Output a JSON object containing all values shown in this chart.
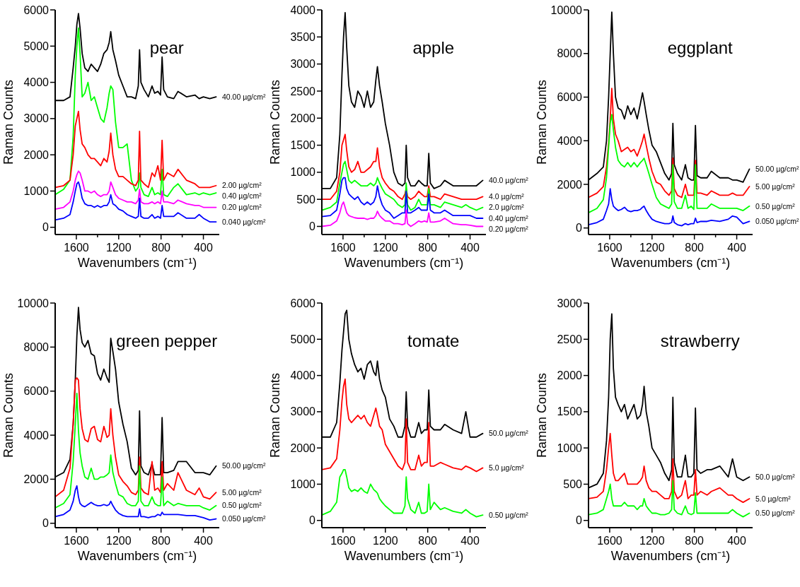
{
  "chart_data": [
    {
      "type": "line",
      "title": "pear",
      "xlabel": "Wavenumbers (cm⁻¹)",
      "ylabel": "Raman Counts",
      "xlim": [
        1800,
        250
      ],
      "xticks": [
        1600,
        {
          "value": 1400,
          "label": null
        },
        1200,
        {
          "value": 1000,
          "label": null
        },
        800,
        {
          "value": 600,
          "label": null
        },
        400
      ],
      "ylim": [
        -200,
        6000
      ],
      "yticks": [
        0,
        1000,
        2000,
        3000,
        4000,
        5000,
        6000
      ],
      "x": [
        1800,
        1720,
        1660,
        1630,
        1610,
        1595,
        1580,
        1565,
        1545,
        1520,
        1490,
        1460,
        1430,
        1400,
        1370,
        1340,
        1310,
        1290,
        1275,
        1255,
        1230,
        1200,
        1160,
        1120,
        1080,
        1040,
        1015,
        1003,
        990,
        960,
        920,
        885,
        860,
        830,
        805,
        790,
        775,
        740,
        680,
        640,
        560,
        480,
        440,
        400,
        340,
        280
      ],
      "series": [
        {
          "name": "40.00 µg/cm²",
          "color": "#000000",
          "values": [
            3500,
            3500,
            3600,
            4400,
            5000,
            5600,
            5900,
            5500,
            4800,
            4400,
            4300,
            4500,
            4400,
            4300,
            4500,
            4800,
            4900,
            5100,
            5400,
            4900,
            4600,
            4200,
            3900,
            3600,
            3600,
            3550,
            3900,
            4900,
            4000,
            3800,
            3600,
            3900,
            3700,
            3750,
            3650,
            4700,
            3800,
            3600,
            3550,
            3750,
            3600,
            3650,
            3550,
            3600,
            3550,
            3600
          ]
        },
        {
          "name": "0.40 µg/cm²",
          "color": "#00ff00",
          "values": [
            900,
            1050,
            1300,
            2500,
            4200,
            5000,
            5500,
            4800,
            3600,
            3700,
            4000,
            3500,
            3600,
            3300,
            3000,
            2900,
            3300,
            3700,
            3900,
            3800,
            2900,
            2200,
            2200,
            2300,
            1300,
            1000,
            1100,
            1500,
            1100,
            900,
            850,
            1100,
            900,
            950,
            900,
            1600,
            900,
            850,
            1100,
            1200,
            900,
            950,
            900,
            950,
            900,
            950
          ]
        },
        {
          "name": "2.00 µg/cm²",
          "color": "#ff0000",
          "values": [
            1100,
            1150,
            1300,
            2000,
            2800,
            3000,
            3200,
            2700,
            2300,
            2200,
            2000,
            1900,
            1900,
            1800,
            1700,
            1900,
            1800,
            2100,
            2600,
            2000,
            1600,
            1400,
            1400,
            1300,
            1200,
            1150,
            1300,
            2650,
            1300,
            1200,
            1100,
            1500,
            1400,
            1700,
            1300,
            2400,
            1300,
            1500,
            1400,
            1600,
            1300,
            1200,
            1100,
            1100,
            1100,
            1150
          ]
        },
        {
          "name": "0.20 µg/cm²",
          "color": "#ff00ff",
          "values": [
            500,
            550,
            700,
            1000,
            1300,
            1450,
            1550,
            1500,
            1300,
            1000,
            1000,
            950,
            1000,
            900,
            850,
            900,
            900,
            1000,
            1250,
            1100,
            900,
            800,
            750,
            700,
            700,
            650,
            750,
            1050,
            700,
            650,
            650,
            700,
            650,
            700,
            650,
            1000,
            700,
            700,
            650,
            750,
            650,
            600,
            600,
            550,
            550,
            550
          ]
        },
        {
          "name": "0.040 µg/cm²",
          "color": "#0000ff",
          "values": [
            200,
            250,
            350,
            700,
            1000,
            1200,
            1250,
            1100,
            800,
            650,
            600,
            600,
            550,
            600,
            550,
            600,
            600,
            700,
            900,
            650,
            600,
            500,
            450,
            350,
            300,
            250,
            300,
            800,
            300,
            250,
            250,
            350,
            250,
            300,
            250,
            600,
            300,
            300,
            300,
            400,
            250,
            250,
            350,
            250,
            150,
            150
          ]
        }
      ]
    },
    {
      "type": "line",
      "title": "apple",
      "xlabel": "Wavenumbers (cm⁻¹)",
      "ylabel": "Raman Counts",
      "xlim": [
        1800,
        250
      ],
      "xticks": [
        1600,
        {
          "value": 1400,
          "label": null
        },
        1200,
        {
          "value": 1000,
          "label": null
        },
        800,
        {
          "value": 600,
          "label": null
        },
        400
      ],
      "ylim": [
        -150,
        4000
      ],
      "yticks": [
        0,
        500,
        1000,
        1500,
        2000,
        2500,
        3000,
        3500,
        4000
      ],
      "x": [
        1800,
        1720,
        1660,
        1630,
        1610,
        1595,
        1580,
        1565,
        1545,
        1520,
        1490,
        1460,
        1430,
        1400,
        1370,
        1340,
        1310,
        1290,
        1275,
        1255,
        1230,
        1200,
        1160,
        1120,
        1080,
        1040,
        1015,
        1003,
        990,
        960,
        920,
        885,
        860,
        830,
        805,
        790,
        775,
        740,
        680,
        640,
        560,
        480,
        440,
        400,
        340,
        280
      ],
      "series": [
        {
          "name": "40.0 µg/cm²",
          "color": "#000000",
          "values": [
            700,
            700,
            900,
            1700,
            2800,
            3500,
            3950,
            3300,
            2600,
            2300,
            2200,
            2500,
            2400,
            2200,
            2500,
            2200,
            2300,
            2700,
            2950,
            2600,
            2300,
            1900,
            1500,
            1000,
            800,
            750,
            800,
            1500,
            900,
            750,
            750,
            850,
            800,
            750,
            750,
            1350,
            800,
            700,
            750,
            850,
            750,
            750,
            750,
            750,
            750,
            850
          ]
        },
        {
          "name": "4.0 µg/cm²",
          "color": "#ff0000",
          "values": [
            500,
            500,
            650,
            1000,
            1500,
            1600,
            1700,
            1400,
            1100,
            1000,
            1050,
            1200,
            1000,
            1000,
            1050,
            1100,
            1200,
            1200,
            1450,
            1100,
            900,
            800,
            700,
            650,
            550,
            500,
            600,
            700,
            550,
            500,
            550,
            650,
            600,
            550,
            550,
            750,
            550,
            550,
            500,
            600,
            550,
            500,
            500,
            500,
            500,
            550
          ]
        },
        {
          "name": "2.0 µg/cm²",
          "color": "#00ff00",
          "values": [
            300,
            350,
            450,
            800,
            1000,
            1150,
            1200,
            1050,
            850,
            800,
            850,
            800,
            750,
            750,
            750,
            800,
            750,
            800,
            900,
            800,
            700,
            600,
            550,
            500,
            400,
            350,
            400,
            800,
            400,
            300,
            350,
            500,
            400,
            400,
            400,
            700,
            400,
            400,
            350,
            450,
            400,
            350,
            400,
            350,
            300,
            350
          ]
        },
        {
          "name": "0.40 µg/cm²",
          "color": "#0000ff",
          "values": [
            180,
            200,
            300,
            600,
            850,
            900,
            900,
            700,
            600,
            550,
            500,
            550,
            450,
            400,
            450,
            400,
            450,
            550,
            750,
            550,
            400,
            300,
            250,
            150,
            200,
            250,
            250,
            650,
            250,
            250,
            300,
            350,
            300,
            300,
            300,
            600,
            300,
            250,
            250,
            300,
            200,
            200,
            200,
            200,
            150,
            150
          ]
        },
        {
          "name": "0.20 µg/cm²",
          "color": "#ff00ff",
          "values": [
            0,
            20,
            100,
            250,
            400,
            450,
            350,
            250,
            200,
            180,
            160,
            150,
            150,
            150,
            130,
            150,
            150,
            200,
            280,
            200,
            150,
            100,
            100,
            50,
            50,
            30,
            50,
            300,
            50,
            0,
            50,
            100,
            80,
            100,
            80,
            250,
            80,
            80,
            100,
            150,
            50,
            30,
            30,
            20,
            0,
            0
          ]
        }
      ]
    },
    {
      "type": "line",
      "title": "eggplant",
      "xlabel": "Wavenumbers (cm⁻¹)",
      "ylabel": "Raman Counts",
      "xlim": [
        1800,
        250
      ],
      "xticks": [
        1600,
        {
          "value": 1400,
          "label": null
        },
        1200,
        {
          "value": 1000,
          "label": null
        },
        800,
        {
          "value": 600,
          "label": null
        },
        400
      ],
      "ylim": [
        -300,
        10000
      ],
      "yticks": [
        0,
        2000,
        4000,
        6000,
        8000,
        10000
      ],
      "x": [
        1800,
        1720,
        1660,
        1630,
        1610,
        1595,
        1580,
        1565,
        1545,
        1520,
        1490,
        1460,
        1430,
        1400,
        1370,
        1340,
        1310,
        1290,
        1275,
        1255,
        1230,
        1200,
        1160,
        1120,
        1080,
        1040,
        1015,
        1003,
        990,
        960,
        920,
        885,
        860,
        830,
        805,
        790,
        775,
        740,
        680,
        640,
        560,
        480,
        440,
        400,
        340,
        280
      ],
      "series": [
        {
          "name": "50.00 µg/cm²",
          "color": "#000000",
          "values": [
            2200,
            2500,
            2800,
            4000,
            6000,
            8000,
            9900,
            8000,
            6000,
            5500,
            5400,
            5000,
            5600,
            5200,
            5500,
            5000,
            5700,
            6200,
            5800,
            5200,
            4500,
            3800,
            3500,
            3000,
            2500,
            2200,
            2500,
            4800,
            2900,
            2500,
            2200,
            2900,
            2300,
            2200,
            2200,
            4700,
            2400,
            2300,
            2300,
            2600,
            2300,
            2300,
            2200,
            2200,
            2100,
            2700
          ]
        },
        {
          "name": "5.00 µg/cm²",
          "color": "#ff0000",
          "values": [
            1400,
            1600,
            1900,
            2800,
            3900,
            5000,
            6400,
            5000,
            4300,
            4000,
            3500,
            3600,
            3700,
            3500,
            3600,
            3300,
            3700,
            4000,
            4300,
            3800,
            3200,
            2600,
            2100,
            2000,
            1700,
            1500,
            1700,
            3200,
            1800,
            1500,
            1400,
            2000,
            1500,
            1500,
            1500,
            3100,
            1600,
            1600,
            1500,
            1700,
            1500,
            1500,
            1600,
            1500,
            1500,
            1900
          ]
        },
        {
          "name": "0.50 µg/cm²",
          "color": "#00ff00",
          "values": [
            700,
            900,
            1300,
            2300,
            3700,
            4800,
            5200,
            4500,
            3700,
            3100,
            2900,
            2800,
            3000,
            2800,
            3000,
            2800,
            3000,
            3100,
            3200,
            2900,
            2500,
            2000,
            1400,
            1100,
            1000,
            900,
            1100,
            2900,
            1200,
            900,
            900,
            1500,
            900,
            1000,
            850,
            2900,
            900,
            900,
            900,
            1100,
            900,
            900,
            900,
            900,
            800,
            1000
          ]
        },
        {
          "name": "0.050 µg/cm²",
          "color": "#0000ff",
          "values": [
            150,
            250,
            400,
            800,
            1100,
            1800,
            1300,
            1000,
            900,
            800,
            850,
            950,
            800,
            750,
            800,
            800,
            850,
            950,
            1000,
            800,
            600,
            400,
            300,
            250,
            200,
            200,
            250,
            550,
            250,
            150,
            100,
            200,
            150,
            200,
            200,
            450,
            250,
            300,
            300,
            350,
            300,
            400,
            550,
            500,
            200,
            300
          ]
        }
      ]
    },
    {
      "type": "line",
      "title": "green pepper",
      "xlabel": "Wavenumbers (cm⁻¹)",
      "ylabel": "Raman Counts",
      "xlim": [
        1800,
        250
      ],
      "xticks": [
        1600,
        {
          "value": 1400,
          "label": null
        },
        1200,
        {
          "value": 1000,
          "label": null
        },
        800,
        {
          "value": 600,
          "label": null
        },
        400
      ],
      "ylim": [
        -200,
        10000
      ],
      "yticks": [
        0,
        2000,
        4000,
        6000,
        8000,
        10000
      ],
      "x": [
        1800,
        1720,
        1660,
        1630,
        1610,
        1595,
        1580,
        1565,
        1545,
        1520,
        1490,
        1460,
        1430,
        1400,
        1370,
        1340,
        1310,
        1290,
        1275,
        1255,
        1230,
        1200,
        1160,
        1120,
        1080,
        1040,
        1015,
        1003,
        990,
        960,
        920,
        885,
        860,
        830,
        805,
        790,
        775,
        740,
        680,
        640,
        560,
        480,
        440,
        400,
        340,
        280
      ],
      "series": [
        {
          "name": "50.00 µg/cm²",
          "color": "#000000",
          "values": [
            2100,
            2300,
            2900,
            4500,
            6500,
            8500,
            9800,
            8800,
            8200,
            8000,
            8300,
            7700,
            7600,
            6800,
            6500,
            7000,
            6600,
            6400,
            8400,
            7800,
            7000,
            5500,
            4500,
            3700,
            2500,
            2200,
            2400,
            5100,
            2600,
            2300,
            2200,
            2700,
            2200,
            2200,
            2200,
            4800,
            2300,
            2300,
            2400,
            2800,
            2800,
            2300,
            2300,
            2300,
            2200,
            2600
          ]
        },
        {
          "name": "5.00 µg/cm²",
          "color": "#ff0000",
          "values": [
            1200,
            1500,
            2500,
            4500,
            6500,
            6600,
            6500,
            5200,
            4300,
            3800,
            3700,
            4300,
            4400,
            3800,
            3700,
            4400,
            3900,
            4000,
            5200,
            4000,
            3000,
            2200,
            1900,
            1700,
            1400,
            1300,
            1500,
            3000,
            1600,
            1400,
            1300,
            2800,
            1500,
            1600,
            1400,
            2800,
            1500,
            1800,
            1500,
            2300,
            1500,
            1300,
            1600,
            1200,
            1100,
            1400
          ]
        },
        {
          "name": "0.50 µg/cm²",
          "color": "#00ff00",
          "values": [
            700,
            900,
            1300,
            2800,
            4500,
            5900,
            4200,
            3200,
            2600,
            2100,
            2000,
            2500,
            2000,
            2000,
            2100,
            2100,
            2200,
            2300,
            3100,
            2300,
            1800,
            1300,
            1200,
            900,
            800,
            800,
            1000,
            2600,
            1000,
            800,
            800,
            1200,
            900,
            800,
            800,
            2100,
            800,
            1000,
            800,
            900,
            800,
            800,
            800,
            700,
            600,
            800
          ]
        },
        {
          "name": "0.050 µg/cm²",
          "color": "#0000ff",
          "values": [
            300,
            400,
            600,
            1000,
            1500,
            1700,
            1200,
            900,
            800,
            750,
            850,
            950,
            850,
            800,
            800,
            850,
            800,
            850,
            1000,
            800,
            600,
            450,
            350,
            300,
            300,
            300,
            300,
            650,
            300,
            300,
            250,
            300,
            300,
            400,
            350,
            500,
            400,
            400,
            400,
            400,
            350,
            350,
            300,
            250,
            150,
            200
          ]
        }
      ]
    },
    {
      "type": "line",
      "title": "tomate",
      "xlabel": "Wavenumbers (cm⁻¹)",
      "ylabel": "Raman Counts",
      "xlim": [
        1800,
        250
      ],
      "xticks": [
        1600,
        {
          "value": 1400,
          "label": null
        },
        1200,
        {
          "value": 1000,
          "label": null
        },
        800,
        {
          "value": 600,
          "label": null
        },
        400
      ],
      "ylim": [
        -200,
        6000
      ],
      "yticks": [
        0,
        1000,
        2000,
        3000,
        4000,
        5000,
        6000
      ],
      "x": [
        1800,
        1720,
        1660,
        1630,
        1610,
        1595,
        1580,
        1565,
        1545,
        1520,
        1490,
        1460,
        1430,
        1400,
        1370,
        1340,
        1310,
        1290,
        1275,
        1255,
        1230,
        1200,
        1160,
        1120,
        1080,
        1040,
        1015,
        1003,
        990,
        960,
        920,
        885,
        860,
        830,
        805,
        790,
        775,
        740,
        680,
        640,
        560,
        480,
        440,
        400,
        340,
        280
      ],
      "series": [
        {
          "name": "50.0 µg/cm²",
          "color": "#000000",
          "values": [
            2300,
            2300,
            2700,
            3800,
            4700,
            5200,
            5700,
            5800,
            5000,
            4600,
            4300,
            4100,
            4200,
            3900,
            4300,
            4400,
            4100,
            4000,
            4400,
            3900,
            3600,
            3400,
            2800,
            2600,
            2300,
            2300,
            2600,
            3550,
            2600,
            2300,
            2300,
            2700,
            2400,
            2500,
            2500,
            3600,
            2600,
            2500,
            2500,
            2650,
            2500,
            2400,
            3000,
            2300,
            2300,
            2400
          ]
        },
        {
          "name": "5.0 µg/cm²",
          "color": "#ff0000",
          "values": [
            1400,
            1450,
            1700,
            2500,
            3300,
            3700,
            3900,
            3200,
            2800,
            2700,
            2800,
            2900,
            2800,
            2900,
            2700,
            2600,
            2900,
            3100,
            2900,
            2600,
            2500,
            2100,
            1900,
            1700,
            1500,
            1400,
            1600,
            2800,
            1600,
            1400,
            1400,
            1800,
            1500,
            1600,
            1600,
            2700,
            1500,
            1500,
            1600,
            1550,
            1450,
            1400,
            1500,
            1450,
            1350,
            1450
          ]
        },
        {
          "name": "0.50 µg/cm²",
          "color": "#00ff00",
          "values": [
            150,
            250,
            500,
            1200,
            1300,
            1400,
            1400,
            1200,
            900,
            800,
            850,
            800,
            900,
            800,
            750,
            1000,
            850,
            800,
            750,
            600,
            500,
            400,
            300,
            200,
            200,
            200,
            400,
            1200,
            600,
            300,
            200,
            500,
            200,
            200,
            250,
            1000,
            300,
            500,
            300,
            350,
            250,
            200,
            300,
            200,
            100,
            150
          ]
        }
      ]
    },
    {
      "type": "line",
      "title": "strawberry",
      "xlabel": "Wavenumbers (cm⁻¹)",
      "ylabel": "Raman Counts",
      "xlim": [
        1800,
        250
      ],
      "xticks": [
        1600,
        {
          "value": 1400,
          "label": null
        },
        1200,
        {
          "value": 1000,
          "label": null
        },
        800,
        {
          "value": 600,
          "label": null
        },
        400
      ],
      "ylim": [
        -100,
        3000
      ],
      "yticks": [
        0,
        500,
        1000,
        1500,
        2000,
        2500,
        3000
      ],
      "x": [
        1800,
        1720,
        1660,
        1630,
        1610,
        1595,
        1580,
        1565,
        1545,
        1520,
        1490,
        1460,
        1430,
        1400,
        1370,
        1340,
        1310,
        1290,
        1275,
        1255,
        1230,
        1200,
        1160,
        1120,
        1080,
        1040,
        1015,
        1003,
        990,
        960,
        920,
        885,
        860,
        830,
        805,
        790,
        775,
        740,
        680,
        640,
        560,
        480,
        440,
        400,
        340,
        280
      ],
      "series": [
        {
          "name": "50.0 µg/cm²",
          "color": "#000000",
          "values": [
            450,
            500,
            650,
            1100,
            1700,
            2500,
            2850,
            2100,
            1700,
            1600,
            1500,
            1600,
            1400,
            1500,
            1600,
            1400,
            1450,
            1600,
            1850,
            1500,
            1300,
            1000,
            900,
            800,
            650,
            550,
            700,
            1700,
            800,
            600,
            600,
            900,
            600,
            600,
            650,
            1550,
            700,
            650,
            700,
            700,
            750,
            600,
            850,
            600,
            550,
            600
          ]
        },
        {
          "name": "5.0 µg/cm²",
          "color": "#ff0000",
          "values": [
            300,
            320,
            400,
            700,
            1000,
            1200,
            900,
            650,
            550,
            550,
            600,
            650,
            500,
            500,
            500,
            500,
            550,
            600,
            750,
            550,
            450,
            400,
            400,
            350,
            300,
            300,
            400,
            850,
            400,
            300,
            350,
            550,
            300,
            350,
            350,
            700,
            350,
            400,
            350,
            400,
            450,
            350,
            350,
            300,
            250,
            300
          ]
        },
        {
          "name": "0.50 µg/cm²",
          "color": "#00ff00",
          "values": [
            80,
            100,
            150,
            300,
            400,
            500,
            300,
            200,
            200,
            200,
            200,
            250,
            200,
            200,
            200,
            150,
            200,
            200,
            300,
            200,
            150,
            100,
            100,
            80,
            80,
            100,
            150,
            550,
            150,
            100,
            80,
            200,
            100,
            80,
            100,
            380,
            100,
            100,
            100,
            100,
            100,
            100,
            150,
            100,
            50,
            100
          ]
        }
      ]
    }
  ]
}
